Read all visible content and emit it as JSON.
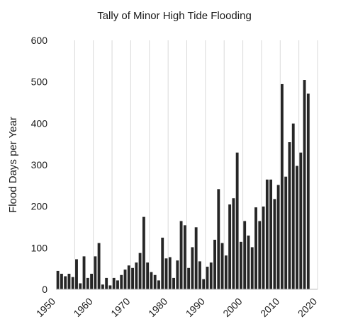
{
  "chart_data": {
    "type": "bar",
    "title": "Tally of Minor High Tide Flooding",
    "xlabel": "",
    "ylabel": "Flood Days  per Year",
    "xlim": [
      1950,
      2020
    ],
    "ylim": [
      0,
      600
    ],
    "xticks": [
      "1950",
      "1960",
      "1970",
      "1980",
      "1990",
      "2000",
      "2010",
      "2020"
    ],
    "yticks": [
      "0",
      "100",
      "200",
      "300",
      "400",
      "500",
      "600"
    ],
    "grid": "vertical",
    "bar_color": "#262626",
    "x": [
      1950,
      1951,
      1952,
      1953,
      1954,
      1955,
      1956,
      1957,
      1958,
      1959,
      1960,
      1961,
      1962,
      1963,
      1964,
      1965,
      1966,
      1967,
      1968,
      1969,
      1970,
      1971,
      1972,
      1973,
      1974,
      1975,
      1976,
      1977,
      1978,
      1979,
      1980,
      1981,
      1982,
      1983,
      1984,
      1985,
      1986,
      1987,
      1988,
      1989,
      1990,
      1991,
      1992,
      1993,
      1994,
      1995,
      1996,
      1997,
      1998,
      1999,
      2000,
      2001,
      2002,
      2003,
      2004,
      2005,
      2006,
      2007,
      2008,
      2009,
      2010,
      2011,
      2012,
      2013,
      2014,
      2015,
      2016,
      2017
    ],
    "values": [
      45,
      38,
      32,
      38,
      30,
      73,
      15,
      80,
      28,
      38,
      80,
      112,
      12,
      28,
      10,
      28,
      22,
      35,
      48,
      58,
      52,
      65,
      88,
      175,
      65,
      42,
      35,
      22,
      125,
      75,
      78,
      28,
      70,
      165,
      155,
      52,
      102,
      150,
      68,
      25,
      55,
      65,
      120,
      242,
      112,
      82,
      205,
      220,
      330,
      115,
      165,
      130,
      102,
      198,
      165,
      200,
      265,
      265,
      218,
      252,
      495,
      272,
      355,
      400,
      298,
      330,
      505,
      472
    ]
  }
}
